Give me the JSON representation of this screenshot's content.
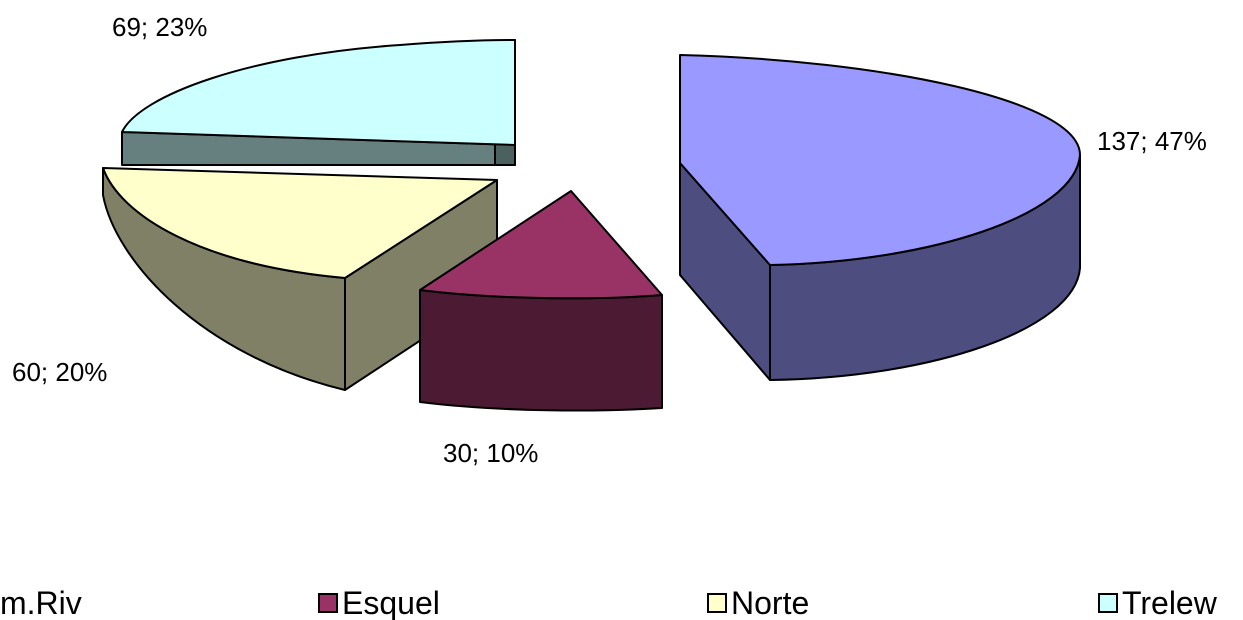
{
  "chart_data": {
    "type": "pie",
    "style": "3d-exploded",
    "slices": [
      {
        "name": "Com.Riv",
        "value": 137,
        "percent": "47%",
        "label": "137; 47%",
        "top_color": "#9999FF",
        "side_color": "#4D4D80"
      },
      {
        "name": "Esquel",
        "value": 30,
        "percent": "10%",
        "label": "30; 10%",
        "top_color": "#993366",
        "side_color": "#4D1A33"
      },
      {
        "name": "Norte",
        "value": 60,
        "percent": "20%",
        "label": "60; 20%",
        "top_color": "#FFFFCC",
        "side_color": "#808066"
      },
      {
        "name": "Trelew",
        "value": 69,
        "percent": "23%",
        "label": "69; 23%",
        "top_color": "#CCFFFF",
        "side_color": "#668080"
      }
    ],
    "legend": {
      "placement": "bottom",
      "visible_text_first": "m.Riv"
    }
  }
}
